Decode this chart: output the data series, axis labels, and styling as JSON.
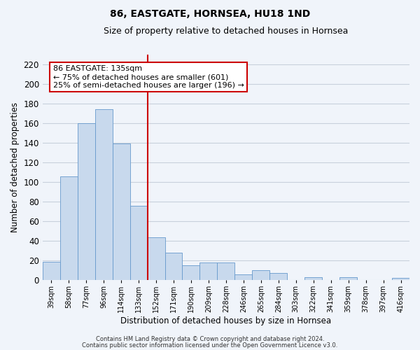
{
  "title": "86, EASTGATE, HORNSEA, HU18 1ND",
  "subtitle": "Size of property relative to detached houses in Hornsea",
  "xlabel": "Distribution of detached houses by size in Hornsea",
  "ylabel": "Number of detached properties",
  "categories": [
    "39sqm",
    "58sqm",
    "77sqm",
    "96sqm",
    "114sqm",
    "133sqm",
    "152sqm",
    "171sqm",
    "190sqm",
    "209sqm",
    "228sqm",
    "246sqm",
    "265sqm",
    "284sqm",
    "303sqm",
    "322sqm",
    "341sqm",
    "359sqm",
    "378sqm",
    "397sqm",
    "416sqm"
  ],
  "values": [
    19,
    106,
    160,
    174,
    139,
    76,
    44,
    28,
    15,
    18,
    18,
    6,
    10,
    7,
    0,
    3,
    0,
    3,
    0,
    0,
    2
  ],
  "bar_facecolor": "#c8d9ed",
  "bar_edgecolor": "#6699cc",
  "vline_color": "#cc0000",
  "annotation_lines": [
    "86 EASTGATE: 135sqm",
    "← 75% of detached houses are smaller (601)",
    "25% of semi-detached houses are larger (196) →"
  ],
  "annotation_box_facecolor": "#ffffff",
  "annotation_box_edgecolor": "#cc0000",
  "ylim": [
    0,
    230
  ],
  "yticks": [
    0,
    20,
    40,
    60,
    80,
    100,
    120,
    140,
    160,
    180,
    200,
    220
  ],
  "footer1": "Contains HM Land Registry data © Crown copyright and database right 2024.",
  "footer2": "Contains public sector information licensed under the Open Government Licence v3.0.",
  "background_color": "#f0f4fa",
  "plot_background": "#f0f4fa",
  "grid_color": "#c8d0dc"
}
